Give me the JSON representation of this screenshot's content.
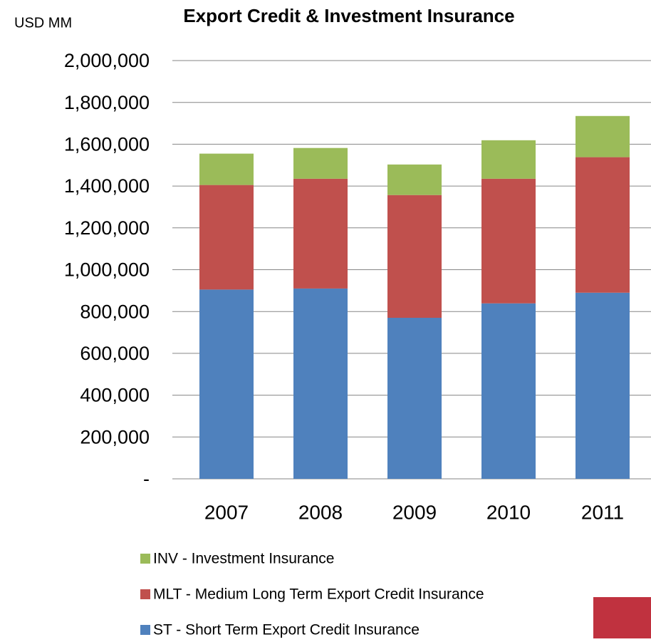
{
  "chart_data": {
    "type": "bar",
    "stacked": true,
    "title": "Export Credit & Investment Insurance",
    "y_axis_label": "USD MM",
    "categories": [
      "2007",
      "2008",
      "2009",
      "2010",
      "2011"
    ],
    "series": [
      {
        "name": "ST - Short Term Export Credit Insurance",
        "color": "#4f81bd",
        "values": [
          905000,
          910000,
          770000,
          839000,
          890000
        ]
      },
      {
        "name": "MLT - Medium Long Term Export Credit Insurance",
        "color": "#c0504d",
        "values": [
          500000,
          525000,
          587000,
          596000,
          648000
        ]
      },
      {
        "name": "INV - Investment Insurance",
        "color": "#9bbb59",
        "values": [
          150000,
          147000,
          146000,
          184000,
          197000
        ]
      }
    ],
    "ylim": [
      0,
      2000000
    ],
    "yticks": [
      {
        "value": 0,
        "label": "-"
      },
      {
        "value": 200000,
        "label": "200,000"
      },
      {
        "value": 400000,
        "label": "400,000"
      },
      {
        "value": 600000,
        "label": "600,000"
      },
      {
        "value": 800000,
        "label": "800,000"
      },
      {
        "value": 1000000,
        "label": "1,000,000"
      },
      {
        "value": 1200000,
        "label": "1,200,000"
      },
      {
        "value": 1400000,
        "label": "1,400,000"
      },
      {
        "value": 1600000,
        "label": "1,600,000"
      },
      {
        "value": 1800000,
        "label": "1,800,000"
      },
      {
        "value": 2000000,
        "label": "2,000,000"
      }
    ],
    "grid": true,
    "legend": "bottom"
  }
}
